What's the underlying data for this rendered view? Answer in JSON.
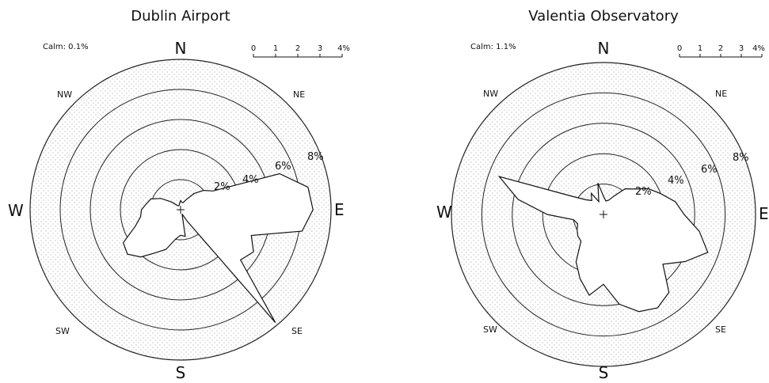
{
  "chart_data": [
    {
      "type": "wind-rose",
      "title": "Dublin Airport",
      "calm_label": "Calm: 0.1%",
      "directions": [
        "N",
        "NE",
        "E",
        "SE",
        "S",
        "SW",
        "W",
        "NW"
      ],
      "ring_labels": [
        "2%",
        "4%",
        "6%",
        "8%"
      ],
      "rmax_pct": 10,
      "scale_bar": {
        "ticks": [
          "0",
          "1",
          "2",
          "3",
          "4%"
        ]
      },
      "grid": true,
      "sectors_deg": [
        0,
        10,
        20,
        30,
        40,
        50,
        60,
        70,
        80,
        90,
        100,
        110,
        120,
        130,
        140,
        150,
        160,
        170,
        180,
        190,
        200,
        210,
        220,
        230,
        240,
        250,
        260,
        270,
        280,
        290,
        300,
        310,
        320,
        330,
        340,
        350
      ],
      "values_pct": [
        0.6,
        0.5,
        0.5,
        0.8,
        1.4,
        2.0,
        2.5,
        7.0,
        8.6,
        8.8,
        8.2,
        5.0,
        5.6,
        5.2,
        9.8,
        0.9,
        0.3,
        1.8,
        1.7,
        2.0,
        2.8,
        3.3,
        4.1,
        4.6,
        4.4,
        3.2,
        2.7,
        2.6,
        2.3,
        2.1,
        1.5,
        0.8,
        0.4,
        0.3,
        0.3,
        0.4
      ]
    },
    {
      "type": "wind-rose",
      "title": "Valentia Observatory",
      "calm_label": "Calm: 1.1%",
      "directions": [
        "N",
        "NE",
        "E",
        "SE",
        "S",
        "SW",
        "W",
        "NW"
      ],
      "ring_labels": [
        "2%",
        "4%",
        "6%",
        "8%"
      ],
      "rmax_pct": 10,
      "scale_bar": {
        "ticks": [
          "0",
          "1",
          "2",
          "3",
          "4%"
        ]
      },
      "grid": true,
      "sectors_deg": [
        0,
        10,
        20,
        30,
        40,
        50,
        60,
        70,
        80,
        90,
        100,
        110,
        120,
        130,
        140,
        150,
        160,
        170,
        180,
        190,
        200,
        210,
        220,
        230,
        240,
        250,
        260,
        270,
        280,
        290,
        300,
        310,
        320,
        330,
        340,
        350
      ],
      "values_pct": [
        1.2,
        0.9,
        1.0,
        1.4,
        2.2,
        2.6,
        3.4,
        4.0,
        4.8,
        5.3,
        6.4,
        7.3,
        6.2,
        5.1,
        6.7,
        7.1,
        6.8,
        6.0,
        4.6,
        5.4,
        4.5,
        3.6,
        2.3,
        2.2,
        2.0,
        1.8,
        2.0,
        3.7,
        5.7,
        7.3,
        2.4,
        1.5,
        1.2,
        1.6,
        0.9,
        2.1
      ]
    }
  ]
}
